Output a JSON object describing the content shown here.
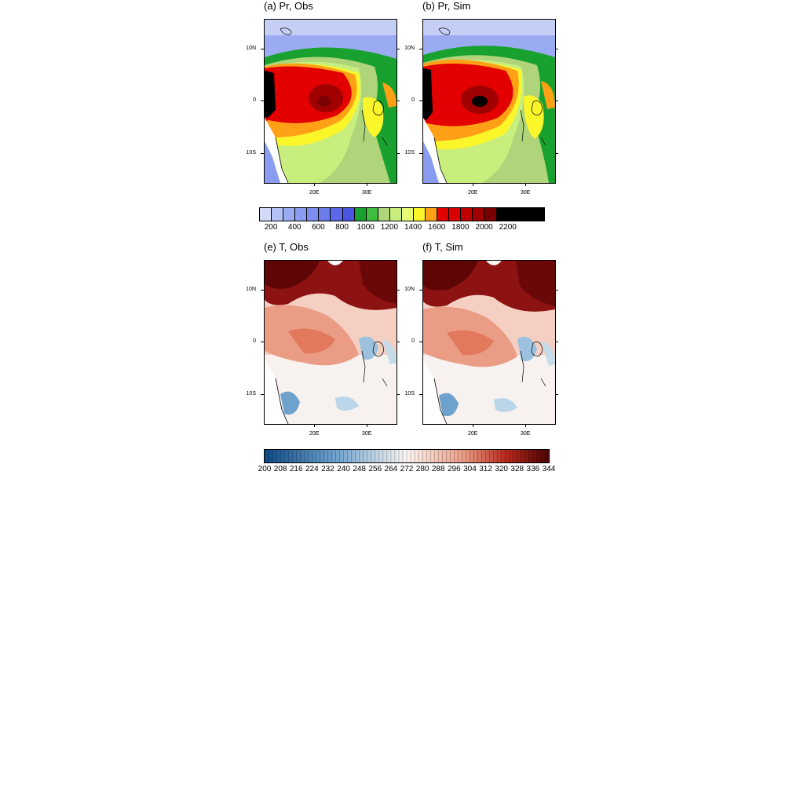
{
  "panels": [
    {
      "id": "pr-obs",
      "title": "(a) Pr, Obs",
      "field": "precip",
      "variant": "obs"
    },
    {
      "id": "pr-sim",
      "title": "(b) Pr, Sim",
      "field": "precip",
      "variant": "sim"
    },
    {
      "id": "t-obs",
      "title": "(e) T, Obs",
      "field": "temp",
      "variant": "obs"
    },
    {
      "id": "t-sim",
      "title": "(f) T, Sim",
      "field": "temp",
      "variant": "sim"
    }
  ],
  "axes": {
    "lat_labels": [
      "10N",
      "0",
      "10S"
    ],
    "lon_labels": [
      "20E",
      "30E"
    ]
  },
  "precip_colorbar": {
    "colors": [
      "#d2daf8",
      "#b4c2f4",
      "#9aabf1",
      "#8a9cf0",
      "#7d8ded",
      "#6c7ce9",
      "#5c68e5",
      "#4a55e0",
      "#18a12f",
      "#3fbd3f",
      "#afd47a",
      "#c8ef7e",
      "#e6fb74",
      "#fbf62a",
      "#ffa016",
      "#e20000",
      "#d80000",
      "#c00000",
      "#a00000",
      "#780000",
      "#000000",
      "#000000",
      "#000000",
      "#000000"
    ],
    "labels": [
      "200",
      "400",
      "600",
      "800",
      "1000",
      "1200",
      "1400",
      "1600",
      "1800",
      "2000",
      "2200"
    ]
  },
  "temp_colorbar": {
    "start_color": "#0d4a84",
    "mid_color": "#fbf5f3",
    "end_color": "#4e0303",
    "labels": [
      "200",
      "208",
      "216",
      "224",
      "232",
      "240",
      "248",
      "256",
      "264",
      "272",
      "280",
      "288",
      "296",
      "304",
      "312",
      "320",
      "328",
      "336",
      "344"
    ]
  }
}
